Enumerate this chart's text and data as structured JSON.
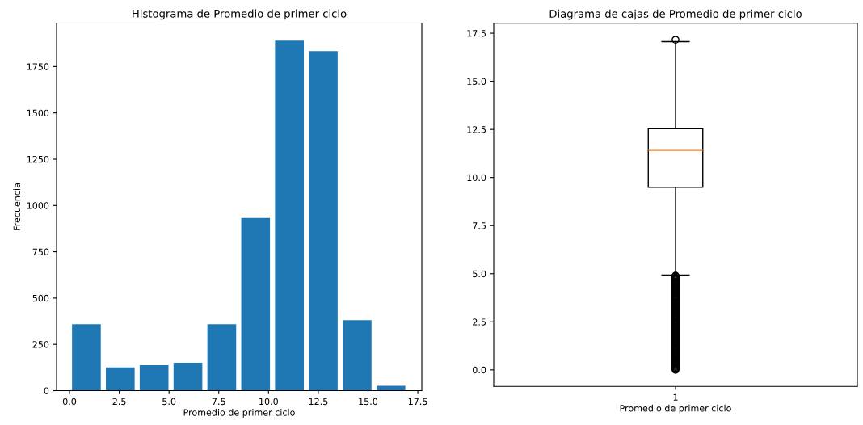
{
  "chart_data": [
    {
      "type": "histogram",
      "title": "Histograma de Promedio de primer ciclo",
      "xlabel": "Promedio de primer ciclo",
      "ylabel": "Frecuencia",
      "bins": [
        0,
        1.7,
        3.4,
        5.1,
        6.8,
        8.5,
        10.2,
        11.9,
        13.6,
        15.3,
        17.0
      ],
      "values": [
        359,
        125,
        137,
        151,
        359,
        932,
        1890,
        1833,
        381,
        26
      ],
      "color": "#1f77b4",
      "xlim": [
        -0.65,
        17.7
      ],
      "xticks": [
        {
          "value": 0,
          "label": "0.0"
        },
        2.5,
        {
          "value": 5,
          "label": "5.0"
        },
        7.5,
        {
          "value": 10,
          "label": "10.0"
        },
        12.5,
        {
          "value": 15,
          "label": "15.0"
        },
        17.5
      ],
      "ylim": [
        0,
        1985
      ],
      "yticks": [
        0,
        250,
        500,
        750,
        1000,
        1250,
        1500,
        1750
      ]
    },
    {
      "type": "box",
      "title": "Diagrama de cajas de Promedio de primer ciclo",
      "xlabel": "Promedio de primer ciclo",
      "categories": [
        "1"
      ],
      "boxes": [
        {
          "low": 4.93,
          "q1": 9.49,
          "median": 11.41,
          "q3": 12.54,
          "high": 17.06,
          "outliers": [
            0,
            0.05,
            0.1,
            0.15,
            0.2,
            0.25,
            0.3,
            0.35,
            0.4,
            0.45,
            0.5,
            0.55,
            0.6,
            0.65,
            0.7,
            0.75,
            0.8,
            0.85,
            0.9,
            0.95,
            1.0,
            1.05,
            1.1,
            1.15,
            1.2,
            1.25,
            1.3,
            1.35,
            1.4,
            1.45,
            1.5,
            1.55,
            1.6,
            1.65,
            1.7,
            1.75,
            1.8,
            1.85,
            1.9,
            1.95,
            2.0,
            2.05,
            2.1,
            2.15,
            2.2,
            2.25,
            2.3,
            2.35,
            2.4,
            2.45,
            2.5,
            2.55,
            2.6,
            2.65,
            2.7,
            2.75,
            2.8,
            2.85,
            2.9,
            2.95,
            3.0,
            3.05,
            3.1,
            3.15,
            3.2,
            3.25,
            3.3,
            3.35,
            3.4,
            3.45,
            3.5,
            3.55,
            3.6,
            3.65,
            3.7,
            3.75,
            3.8,
            3.85,
            3.9,
            3.95,
            4.0,
            4.05,
            4.1,
            4.15,
            4.2,
            4.25,
            4.3,
            4.35,
            4.4,
            4.45,
            4.5,
            4.55,
            4.6,
            4.65,
            4.7,
            4.75,
            4.8,
            4.85,
            4.9,
            17.16
          ]
        }
      ],
      "ylim": [
        -0.86,
        18.02
      ],
      "yticks": [
        {
          "value": 0,
          "label": "0.0"
        },
        2.5,
        {
          "value": 5,
          "label": "5.0"
        },
        7.5,
        {
          "value": 10,
          "label": "10.0"
        },
        12.5,
        {
          "value": 15,
          "label": "15.0"
        },
        17.5
      ]
    }
  ]
}
